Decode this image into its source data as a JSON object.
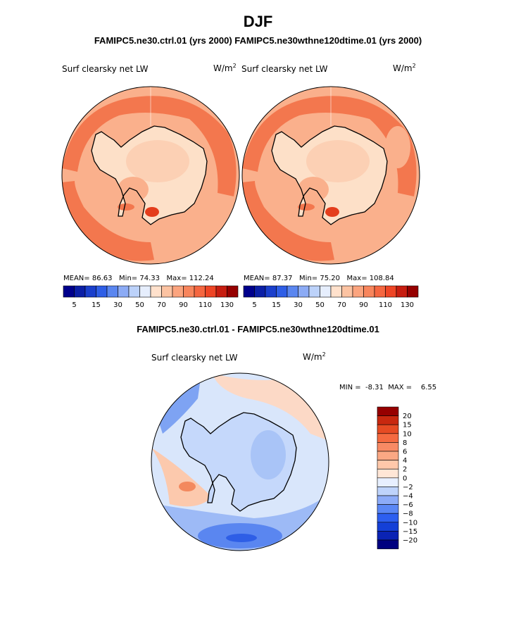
{
  "title": "DJF",
  "cases_line": "FAMIPC5.ne30.ctrl.01 (yrs 2000)  FAMIPC5.ne30wthne120dtime.01 (yrs 2000)",
  "diff_title": "FAMIPC5.ne30.ctrl.01 - FAMIPC5.ne30wthne120dtime.01",
  "units": {
    "base": "W/m",
    "exp": "2"
  },
  "colors": {
    "seq": [
      "#00008c",
      "#0b1fa6",
      "#1a3fcc",
      "#2e5ee6",
      "#5a86f0",
      "#8cabf5",
      "#bcd2fa",
      "#e6eefd",
      "#ffe1cc",
      "#fcc3a2",
      "#fba47e",
      "#f8855c",
      "#f56640",
      "#ee4525",
      "#c71d10",
      "#960000"
    ],
    "land_inner": "#fde0c8",
    "ocean_base": "#fab08c",
    "warm_band": "#f3774e",
    "hot_spot": "#e43d1c",
    "diff_fill": [
      "#000080",
      "#0a23b4",
      "#1440d7",
      "#2d5ff0",
      "#5a87f5",
      "#8cabf8",
      "#bed3fb",
      "#e7efff",
      "#ffe6d6",
      "#ffc8aa",
      "#fba884",
      "#f88a64",
      "#f56a40",
      "#e64b23",
      "#c8280f",
      "#960000"
    ],
    "diff_base": "#d9e6fb"
  },
  "panels": [
    {
      "name": "ctrl",
      "label": "Surf clearsky net LW",
      "mean_label": "MEAN=",
      "mean": "86.63",
      "min_label": "Min=",
      "min": "74.33",
      "max_label": "Max=",
      "max": "112.24"
    },
    {
      "name": "test",
      "label": "Surf clearsky net LW",
      "mean_label": "MEAN=",
      "mean": "87.37",
      "min_label": "Min=",
      "min": "75.20",
      "max_label": "Max=",
      "max": "108.84"
    }
  ],
  "seq_ticks": [
    "5",
    "15",
    "30",
    "50",
    "70",
    "90",
    "110",
    "130"
  ],
  "difference": {
    "label": "Surf clearsky net LW",
    "min_label": "MIN =",
    "min": "-8.31",
    "max_label": "MAX =",
    "max": "6.55",
    "ticks": [
      "20",
      "15",
      "10",
      "8",
      "6",
      "4",
      "2",
      "0",
      "−2",
      "−4",
      "−6",
      "−8",
      "−10",
      "−15",
      "−20"
    ]
  },
  "chart_data": {
    "type": "heatmap",
    "title": "DJF",
    "variable": "Surf clearsky net LW",
    "units": "W/m^2",
    "projection": "south polar stereographic",
    "panels": [
      {
        "case": "FAMIPC5.ne30.ctrl.01 (yrs 2000)",
        "mean": 86.63,
        "min": 74.33,
        "max": 112.24,
        "contour_levels": [
          5,
          10,
          15,
          20,
          30,
          40,
          50,
          60,
          70,
          80,
          90,
          100,
          110,
          120,
          130
        ]
      },
      {
        "case": "FAMIPC5.ne30wthne120dtime.01 (yrs 2000)",
        "mean": 87.37,
        "min": 75.2,
        "max": 108.84,
        "contour_levels": [
          5,
          10,
          15,
          20,
          30,
          40,
          50,
          60,
          70,
          80,
          90,
          100,
          110,
          120,
          130
        ]
      },
      {
        "case": "FAMIPC5.ne30.ctrl.01 - FAMIPC5.ne30wthne120dtime.01",
        "min": -8.31,
        "max": 6.55,
        "contour_levels": [
          -20,
          -15,
          -10,
          -8,
          -6,
          -4,
          -2,
          0,
          2,
          4,
          6,
          8,
          10,
          15,
          20
        ]
      }
    ]
  }
}
